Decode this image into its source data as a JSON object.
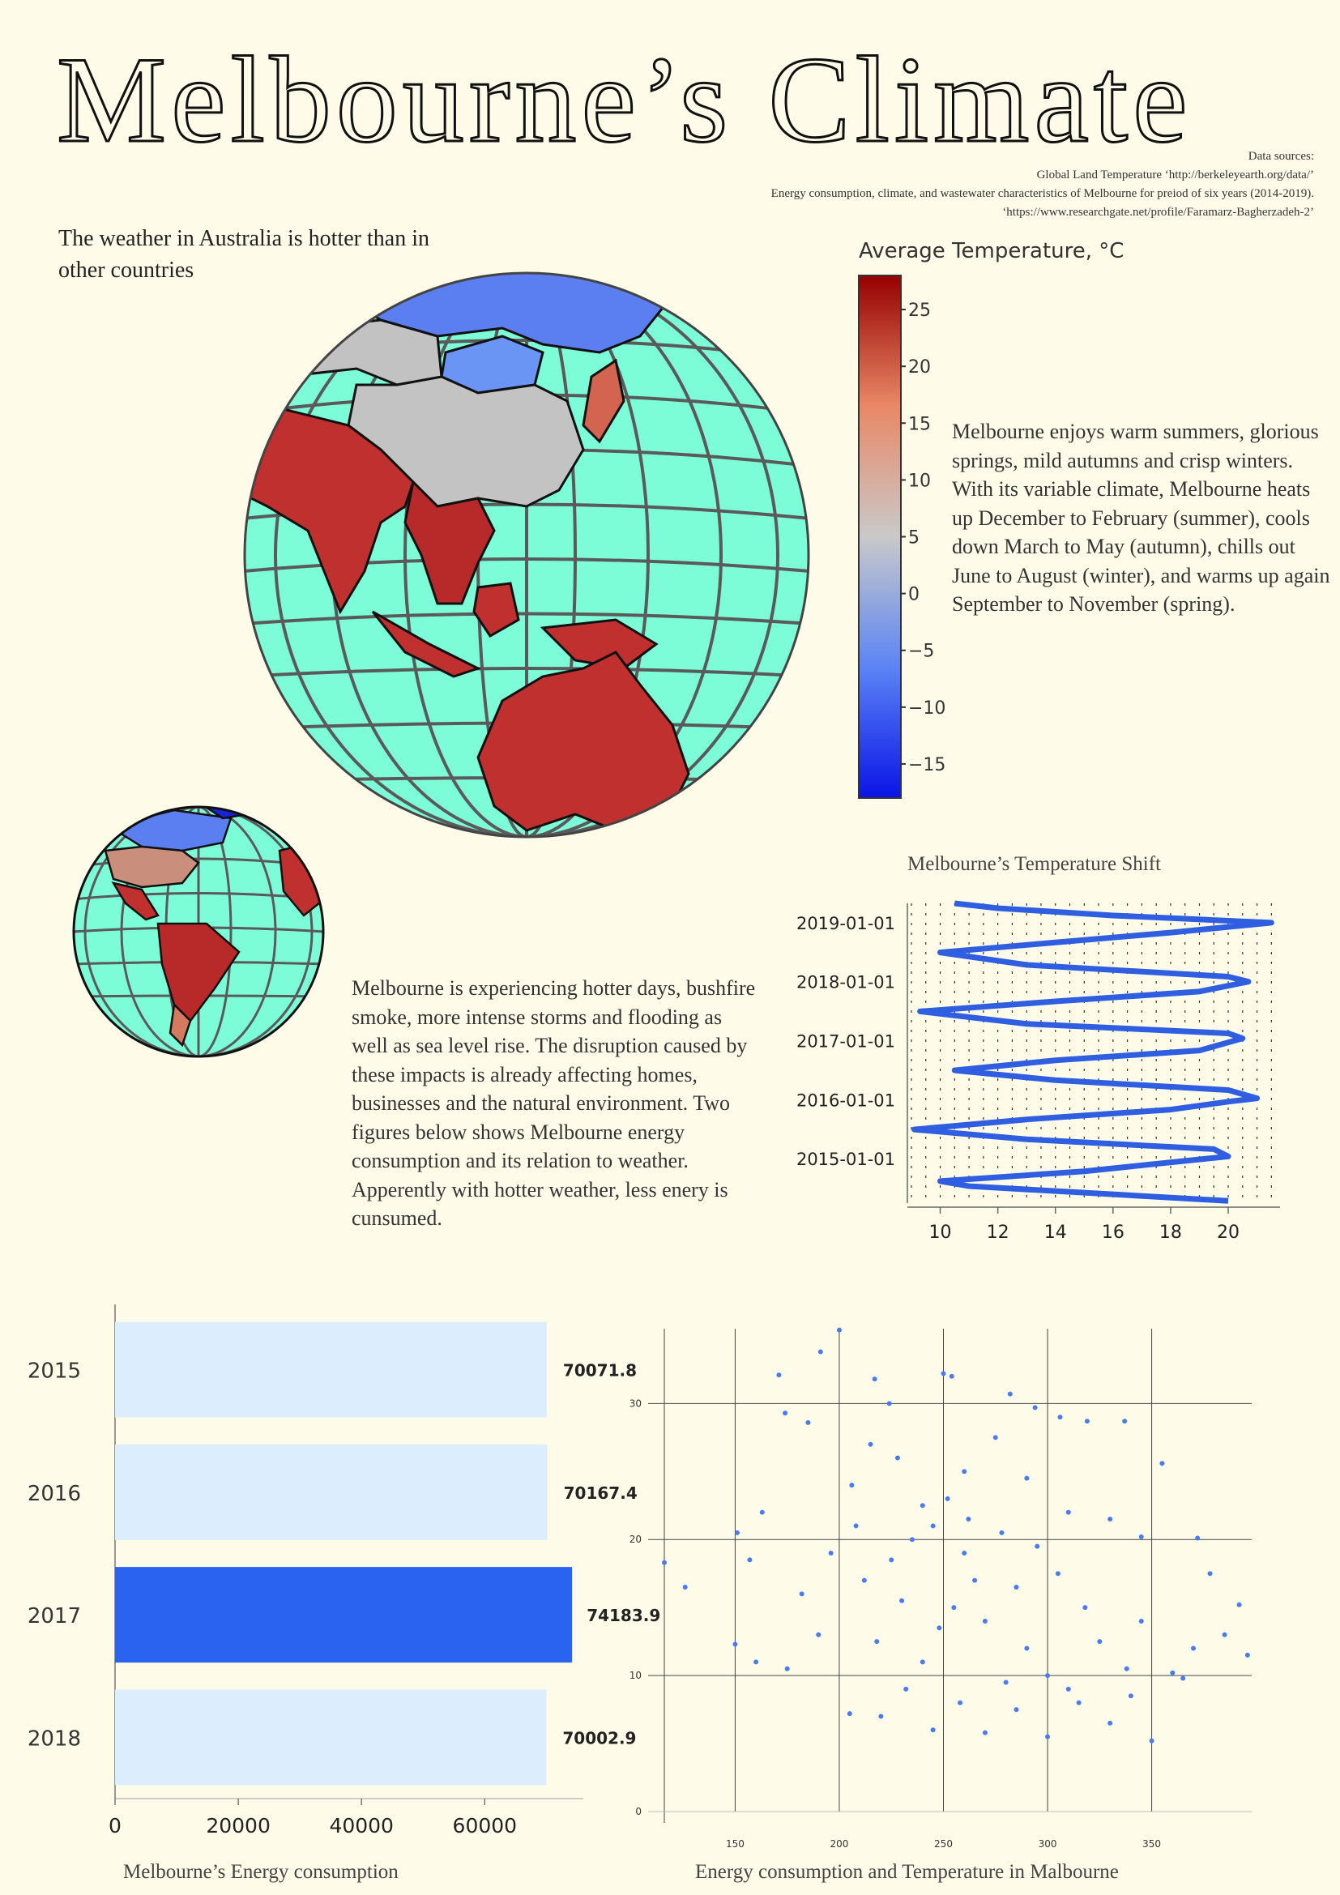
{
  "title": "Melbourne’s Climate",
  "sources": {
    "heading": "Data sources:",
    "line1": "Global Land Temperature   ‘http://berkeleyearth.org/data/’",
    "line2": "Energy consumption, climate, and wastewater characteristics of Melbourne  for preiod of six years (2014-2019).",
    "line3": "‘https://www.researchgate.net/profile/Faramarz-Bagherzadeh-2’"
  },
  "intro": "The weather in Australia is hotter than in other countries",
  "paragraph_right": "Melbourne enjoys warm summers, glorious springs, mild autumns and crisp winters. With its variable climate, Melbourne heats up December to February (summer), cools down March to May (autumn), chills out June to August (winter), and warms up again September to November (spring).",
  "paragraph_mid": "Melbourne is experiencing hotter days, bushfire smoke, more intense storms and flooding as well as sea level rise. The disruption caused by these impacts is already affecting homes, businesses and the natural environment. Two figures below shows Melbourne energy consumption and its relation to weather. Apperently with hotter weather, less enery is cunsumed.",
  "colors": {
    "background": "#fefce9",
    "ocean": "#7dfcd8",
    "grid": "#555555",
    "hot": "#c0302e",
    "neutral": "#c3c3c3",
    "cold": "#4a6ef0",
    "series": "#2f5fe0",
    "bar_light": "#dceefe",
    "bar_highlight": "#2a63f0"
  },
  "chart_data": [
    {
      "type": "map",
      "title": "",
      "colorbar": {
        "title": "Average Temperature, °C",
        "ticks": [
          25,
          20,
          15,
          10,
          5,
          0,
          -5,
          -10,
          -15
        ],
        "range": [
          -18,
          28
        ],
        "colors": [
          "#0a14e6",
          "#5b84f5",
          "#c9c9c9",
          "#e98866",
          "#960000"
        ]
      },
      "regions": [
        {
          "name": "Australia",
          "value": 21.5
        },
        {
          "name": "India",
          "value": 24.5
        },
        {
          "name": "Southeast Asia",
          "value": 25.5
        },
        {
          "name": "China",
          "value": 7
        },
        {
          "name": "Mongolia",
          "value": 0
        },
        {
          "name": "Russia",
          "value": -5
        },
        {
          "name": "Kazakhstan",
          "value": 6
        },
        {
          "name": "Japan",
          "value": 12
        }
      ]
    },
    {
      "type": "line",
      "title": "Melbourne’s Temperature Shift",
      "xlabel": "",
      "ylabel": "",
      "xlim": [
        9,
        21.8
      ],
      "ylim": [
        "2014-04-01",
        "2019-05-01"
      ],
      "xticks": [
        10,
        12,
        14,
        16,
        18,
        20
      ],
      "yticks": [
        "2015-01-01",
        "2016-01-01",
        "2017-01-01",
        "2018-01-01",
        "2019-01-01"
      ],
      "orientation": "temperature on x, date on y",
      "series": [
        {
          "points": [
            {
              "date": "2014-04-15",
              "temp": 20
            },
            {
              "date": "2014-07-15",
              "temp": 11
            },
            {
              "date": "2014-08-15",
              "temp": 10
            },
            {
              "date": "2014-10-15",
              "temp": 15
            },
            {
              "date": "2015-01-15",
              "temp": 20
            },
            {
              "date": "2015-03-01",
              "temp": 19.5
            },
            {
              "date": "2015-05-01",
              "temp": 13
            },
            {
              "date": "2015-07-01",
              "temp": 9.1
            },
            {
              "date": "2015-09-01",
              "temp": 13
            },
            {
              "date": "2015-11-01",
              "temp": 18
            },
            {
              "date": "2015-12-20",
              "temp": 20
            },
            {
              "date": "2016-01-10",
              "temp": 21
            },
            {
              "date": "2016-03-01",
              "temp": 20
            },
            {
              "date": "2016-05-01",
              "temp": 14
            },
            {
              "date": "2016-07-01",
              "temp": 10.5
            },
            {
              "date": "2016-09-01",
              "temp": 14
            },
            {
              "date": "2016-11-01",
              "temp": 19
            },
            {
              "date": "2017-01-15",
              "temp": 20.5
            },
            {
              "date": "2017-02-15",
              "temp": 20
            },
            {
              "date": "2017-04-15",
              "temp": 13
            },
            {
              "date": "2017-07-01",
              "temp": 9.3
            },
            {
              "date": "2017-09-01",
              "temp": 14
            },
            {
              "date": "2017-11-01",
              "temp": 19
            },
            {
              "date": "2018-01-01",
              "temp": 20.7
            },
            {
              "date": "2018-02-01",
              "temp": 20
            },
            {
              "date": "2018-04-15",
              "temp": 13
            },
            {
              "date": "2018-07-01",
              "temp": 10
            },
            {
              "date": "2018-09-01",
              "temp": 14
            },
            {
              "date": "2018-11-01",
              "temp": 18
            },
            {
              "date": "2019-01-01",
              "temp": 21.5
            },
            {
              "date": "2019-02-15",
              "temp": 16
            },
            {
              "date": "2019-04-01",
              "temp": 12
            },
            {
              "date": "2019-05-01",
              "temp": 10.5
            }
          ]
        }
      ]
    },
    {
      "type": "bar",
      "orientation": "horizontal",
      "title": "Melbourne’s Energy consumption",
      "categories": [
        "2015",
        "2016",
        "2017",
        "2018"
      ],
      "values": [
        70071.8,
        70167.4,
        74183.9,
        70002.9
      ],
      "value_labels": [
        "70071.8",
        "70167.4",
        "74183.9",
        "70002.9"
      ],
      "highlight": "2017",
      "xlim": [
        0,
        76000
      ],
      "xticks": [
        0,
        20000,
        40000,
        60000
      ]
    },
    {
      "type": "scatter",
      "title": "Energy consumption and Temperature in Malbourne",
      "xlabel": "",
      "ylabel": "",
      "xlim": [
        116,
        398
      ],
      "ylim": [
        0,
        35.5
      ],
      "xticks": [
        150,
        200,
        250,
        300,
        350
      ],
      "yticks": [
        0,
        10,
        20,
        30
      ],
      "points": [
        [
          200,
          35.4
        ],
        [
          191,
          33.8
        ],
        [
          171,
          32.1
        ],
        [
          250,
          32.2
        ],
        [
          254,
          32
        ],
        [
          217,
          31.8
        ],
        [
          282,
          30.7
        ],
        [
          294,
          29.7
        ],
        [
          337,
          28.7
        ],
        [
          224,
          30
        ],
        [
          174,
          29.3
        ],
        [
          185,
          28.6
        ],
        [
          319,
          28.7
        ],
        [
          306,
          29
        ],
        [
          355,
          25.6
        ],
        [
          116,
          18.3
        ],
        [
          126,
          16.5
        ],
        [
          151,
          20.5
        ],
        [
          157,
          18.5
        ],
        [
          163,
          22
        ],
        [
          150,
          12.3
        ],
        [
          206,
          24
        ],
        [
          215,
          27
        ],
        [
          228,
          26
        ],
        [
          240,
          22.5
        ],
        [
          260,
          25
        ],
        [
          275,
          27.5
        ],
        [
          290,
          24.5
        ],
        [
          310,
          22
        ],
        [
          330,
          21.5
        ],
        [
          345,
          20.2
        ],
        [
          372,
          20.1
        ],
        [
          378,
          17.5
        ],
        [
          392,
          15.2
        ],
        [
          396,
          11.5
        ],
        [
          385,
          13
        ],
        [
          365,
          9.8
        ],
        [
          350,
          5.2
        ],
        [
          330,
          6.5
        ],
        [
          300,
          5.5
        ],
        [
          270,
          5.8
        ],
        [
          245,
          6
        ],
        [
          220,
          7
        ],
        [
          205,
          7.2
        ],
        [
          160,
          11
        ],
        [
          175,
          10.5
        ],
        [
          190,
          13
        ],
        [
          182,
          16
        ],
        [
          260,
          19
        ],
        [
          265,
          17
        ],
        [
          255,
          15
        ],
        [
          248,
          13.5
        ],
        [
          270,
          14
        ],
        [
          285,
          16.5
        ],
        [
          290,
          12
        ],
        [
          300,
          10
        ],
        [
          310,
          9
        ],
        [
          280,
          9.5
        ],
        [
          240,
          11
        ],
        [
          230,
          15.5
        ],
        [
          225,
          18.5
        ],
        [
          235,
          20
        ],
        [
          245,
          21
        ],
        [
          252,
          23
        ],
        [
          262,
          21.5
        ],
        [
          278,
          20.5
        ],
        [
          295,
          19.5
        ],
        [
          305,
          17.5
        ],
        [
          318,
          15
        ],
        [
          325,
          12.5
        ],
        [
          338,
          10.5
        ],
        [
          345,
          14
        ],
        [
          212,
          17
        ],
        [
          208,
          21
        ],
        [
          196,
          19
        ],
        [
          218,
          12.5
        ],
        [
          232,
          9
        ],
        [
          258,
          8
        ],
        [
          285,
          7.5
        ],
        [
          315,
          8
        ],
        [
          340,
          8.5
        ],
        [
          360,
          10.2
        ],
        [
          370,
          12
        ]
      ]
    }
  ]
}
